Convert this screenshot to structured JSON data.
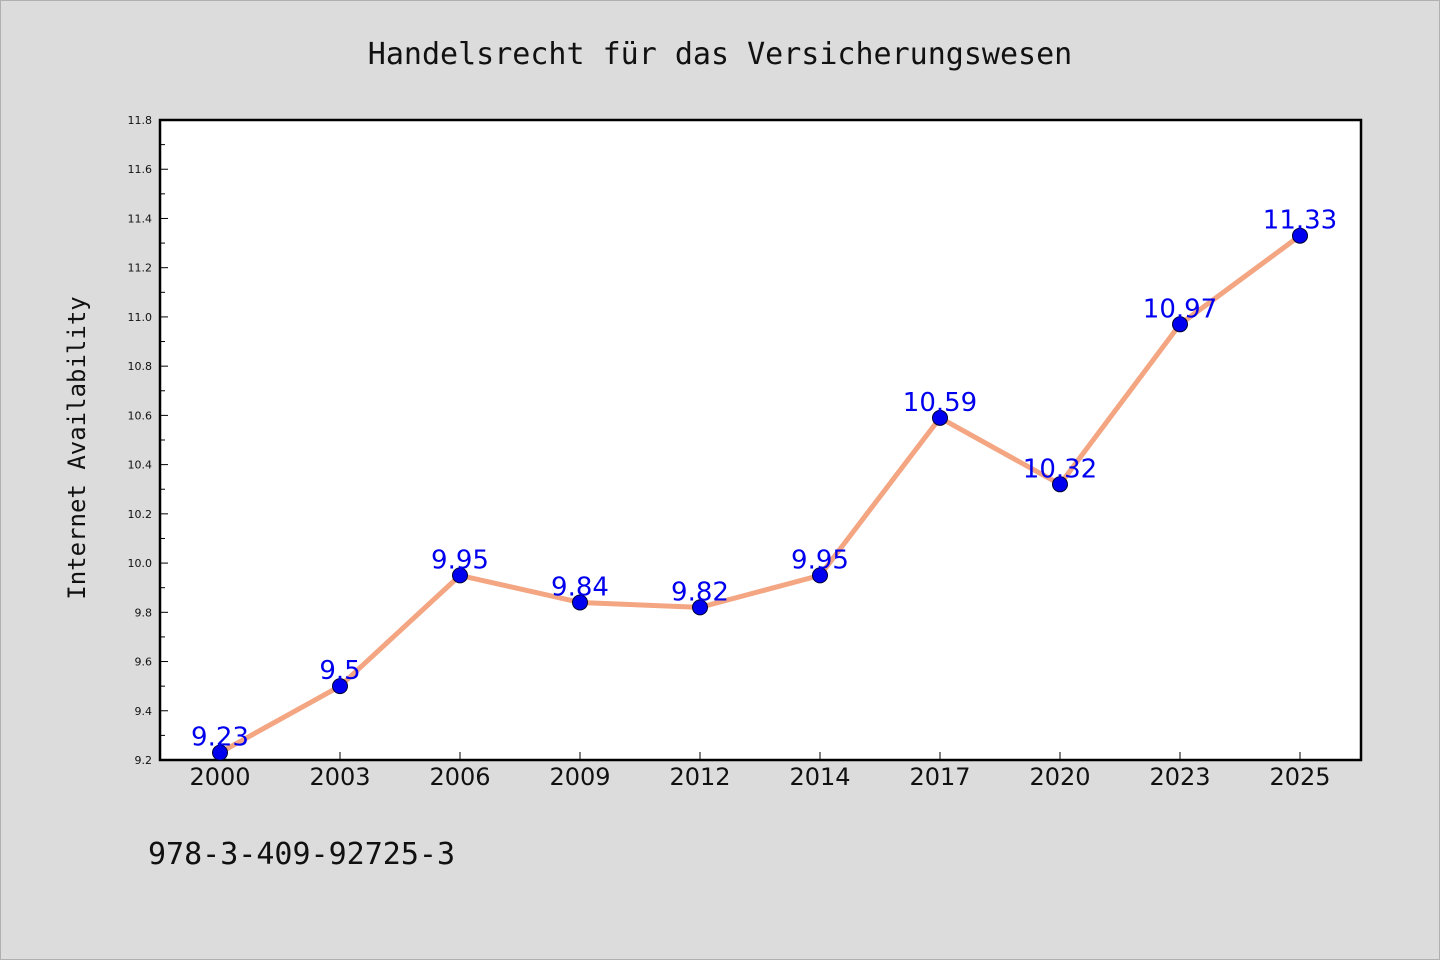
{
  "chart_data": {
    "type": "line",
    "title": "Handelsrecht für das Versicherungswesen",
    "xlabel": "",
    "ylabel": "Internet Availability",
    "categories": [
      "2000",
      "2003",
      "2006",
      "2009",
      "2012",
      "2014",
      "2017",
      "2020",
      "2023",
      "2025"
    ],
    "series": [
      {
        "values": [
          9.23,
          9.5,
          9.95,
          9.84,
          9.82,
          9.95,
          10.59,
          10.32,
          10.97,
          11.33
        ],
        "labels": [
          "9.23",
          "9.5",
          "9.95",
          "9.84",
          "9.82",
          "9.95",
          "10.59",
          "10.32",
          "10.97",
          "11.33"
        ]
      }
    ],
    "ylim": [
      9.2,
      11.8
    ],
    "yticks": [
      "9.2",
      "9.4",
      "9.6",
      "9.8",
      "10.0",
      "10.2",
      "10.4",
      "10.6",
      "10.8",
      "11.0",
      "11.2",
      "11.4",
      "11.6",
      "11.8"
    ],
    "grid": false,
    "legend": "none",
    "line_color": "#f4a582",
    "marker_color": "#0000ee",
    "label_color": "#0000ee"
  },
  "footer": {
    "isbn": "978-3-409-92725-3"
  }
}
